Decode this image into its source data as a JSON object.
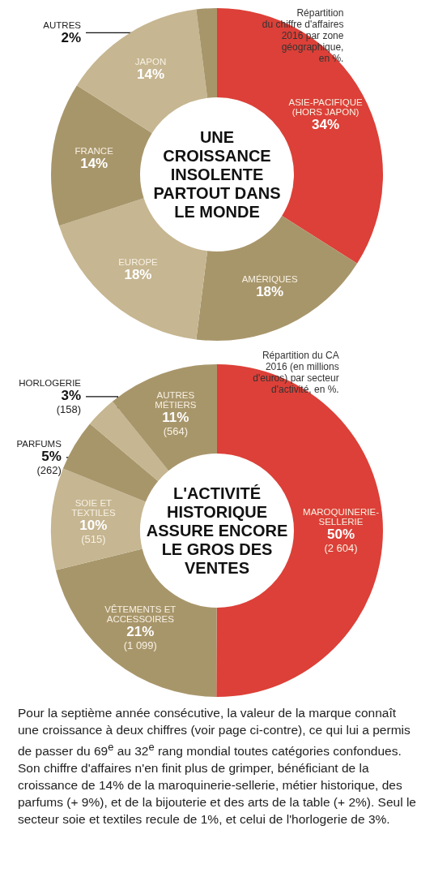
{
  "chart_data": [
    {
      "type": "donut",
      "title": "UNE\nCROISSANCE\nINSOLENTE\nPARTOUT DANS\nLE MONDE",
      "subtitle": "Répartition\ndu chiffre d'affaires\n2016 par zone\ngéographique,\nen %.",
      "categories": [
        "ASIE-PACIFIQUE\n(HORS JAPON)",
        "AMÉRIQUES",
        "EUROPE",
        "FRANCE",
        "JAPON",
        "AUTRES"
      ],
      "values": [
        34,
        18,
        18,
        14,
        14,
        2
      ],
      "value_labels": [
        "34%",
        "18%",
        "18%",
        "14%",
        "14%",
        "2%"
      ],
      "colors": [
        "#dc4038",
        "#a8966b",
        "#c6b691",
        "#a8966b",
        "#c6b691",
        "#a8966b"
      ]
    },
    {
      "type": "donut",
      "title": "L'ACTIVITÉ\nHISTORIQUE\nASSURE ENCORE\nLE GROS DES\nVENTES",
      "subtitle": "Répartition du CA\n2016 (en millions\nd'euros) par secteur\nd'activité, en %.",
      "categories": [
        "MAROQUINERIE-\nSELLERIE",
        "VÊTEMENTS ET\nACCESSOIRES",
        "SOIE ET\nTEXTILES",
        "PARFUMS",
        "HORLOGERIE",
        "AUTRES\nMÉTIERS"
      ],
      "values": [
        2604,
        1099,
        515,
        262,
        158,
        564
      ],
      "value_labels": [
        "50%\n(2 604)",
        "21%\n(1 099)",
        "10%\n(515)",
        "5%\n(262)",
        "3%\n(158)",
        "11%\n(564)"
      ],
      "colors": [
        "#dc4038",
        "#a8966b",
        "#c6b691",
        "#a8966b",
        "#c6b691",
        "#a8966b"
      ],
      "annotations": [
        "Pour la septième année consécutive, la valeur de la marque connaît une croissance à deux chiffres (voir page ci-contre), ce qui lui a permis de passer du 69$^{e}$ au 32$^{e}$ rang mondial toutes catégories confondues. Son chiffre d'affaires n'en finit plus de grimper, bénéficiant de la croissance de 14% de la maroquinerie-sellerie, métier historique, des parfums (+ 9%), et de la bijouterie et des arts de la table (+ 2%). Seul le secteur soie et textiles recule de 1%, et celui de l'horlogerie de 3%."
      ]
    }
  ]
}
